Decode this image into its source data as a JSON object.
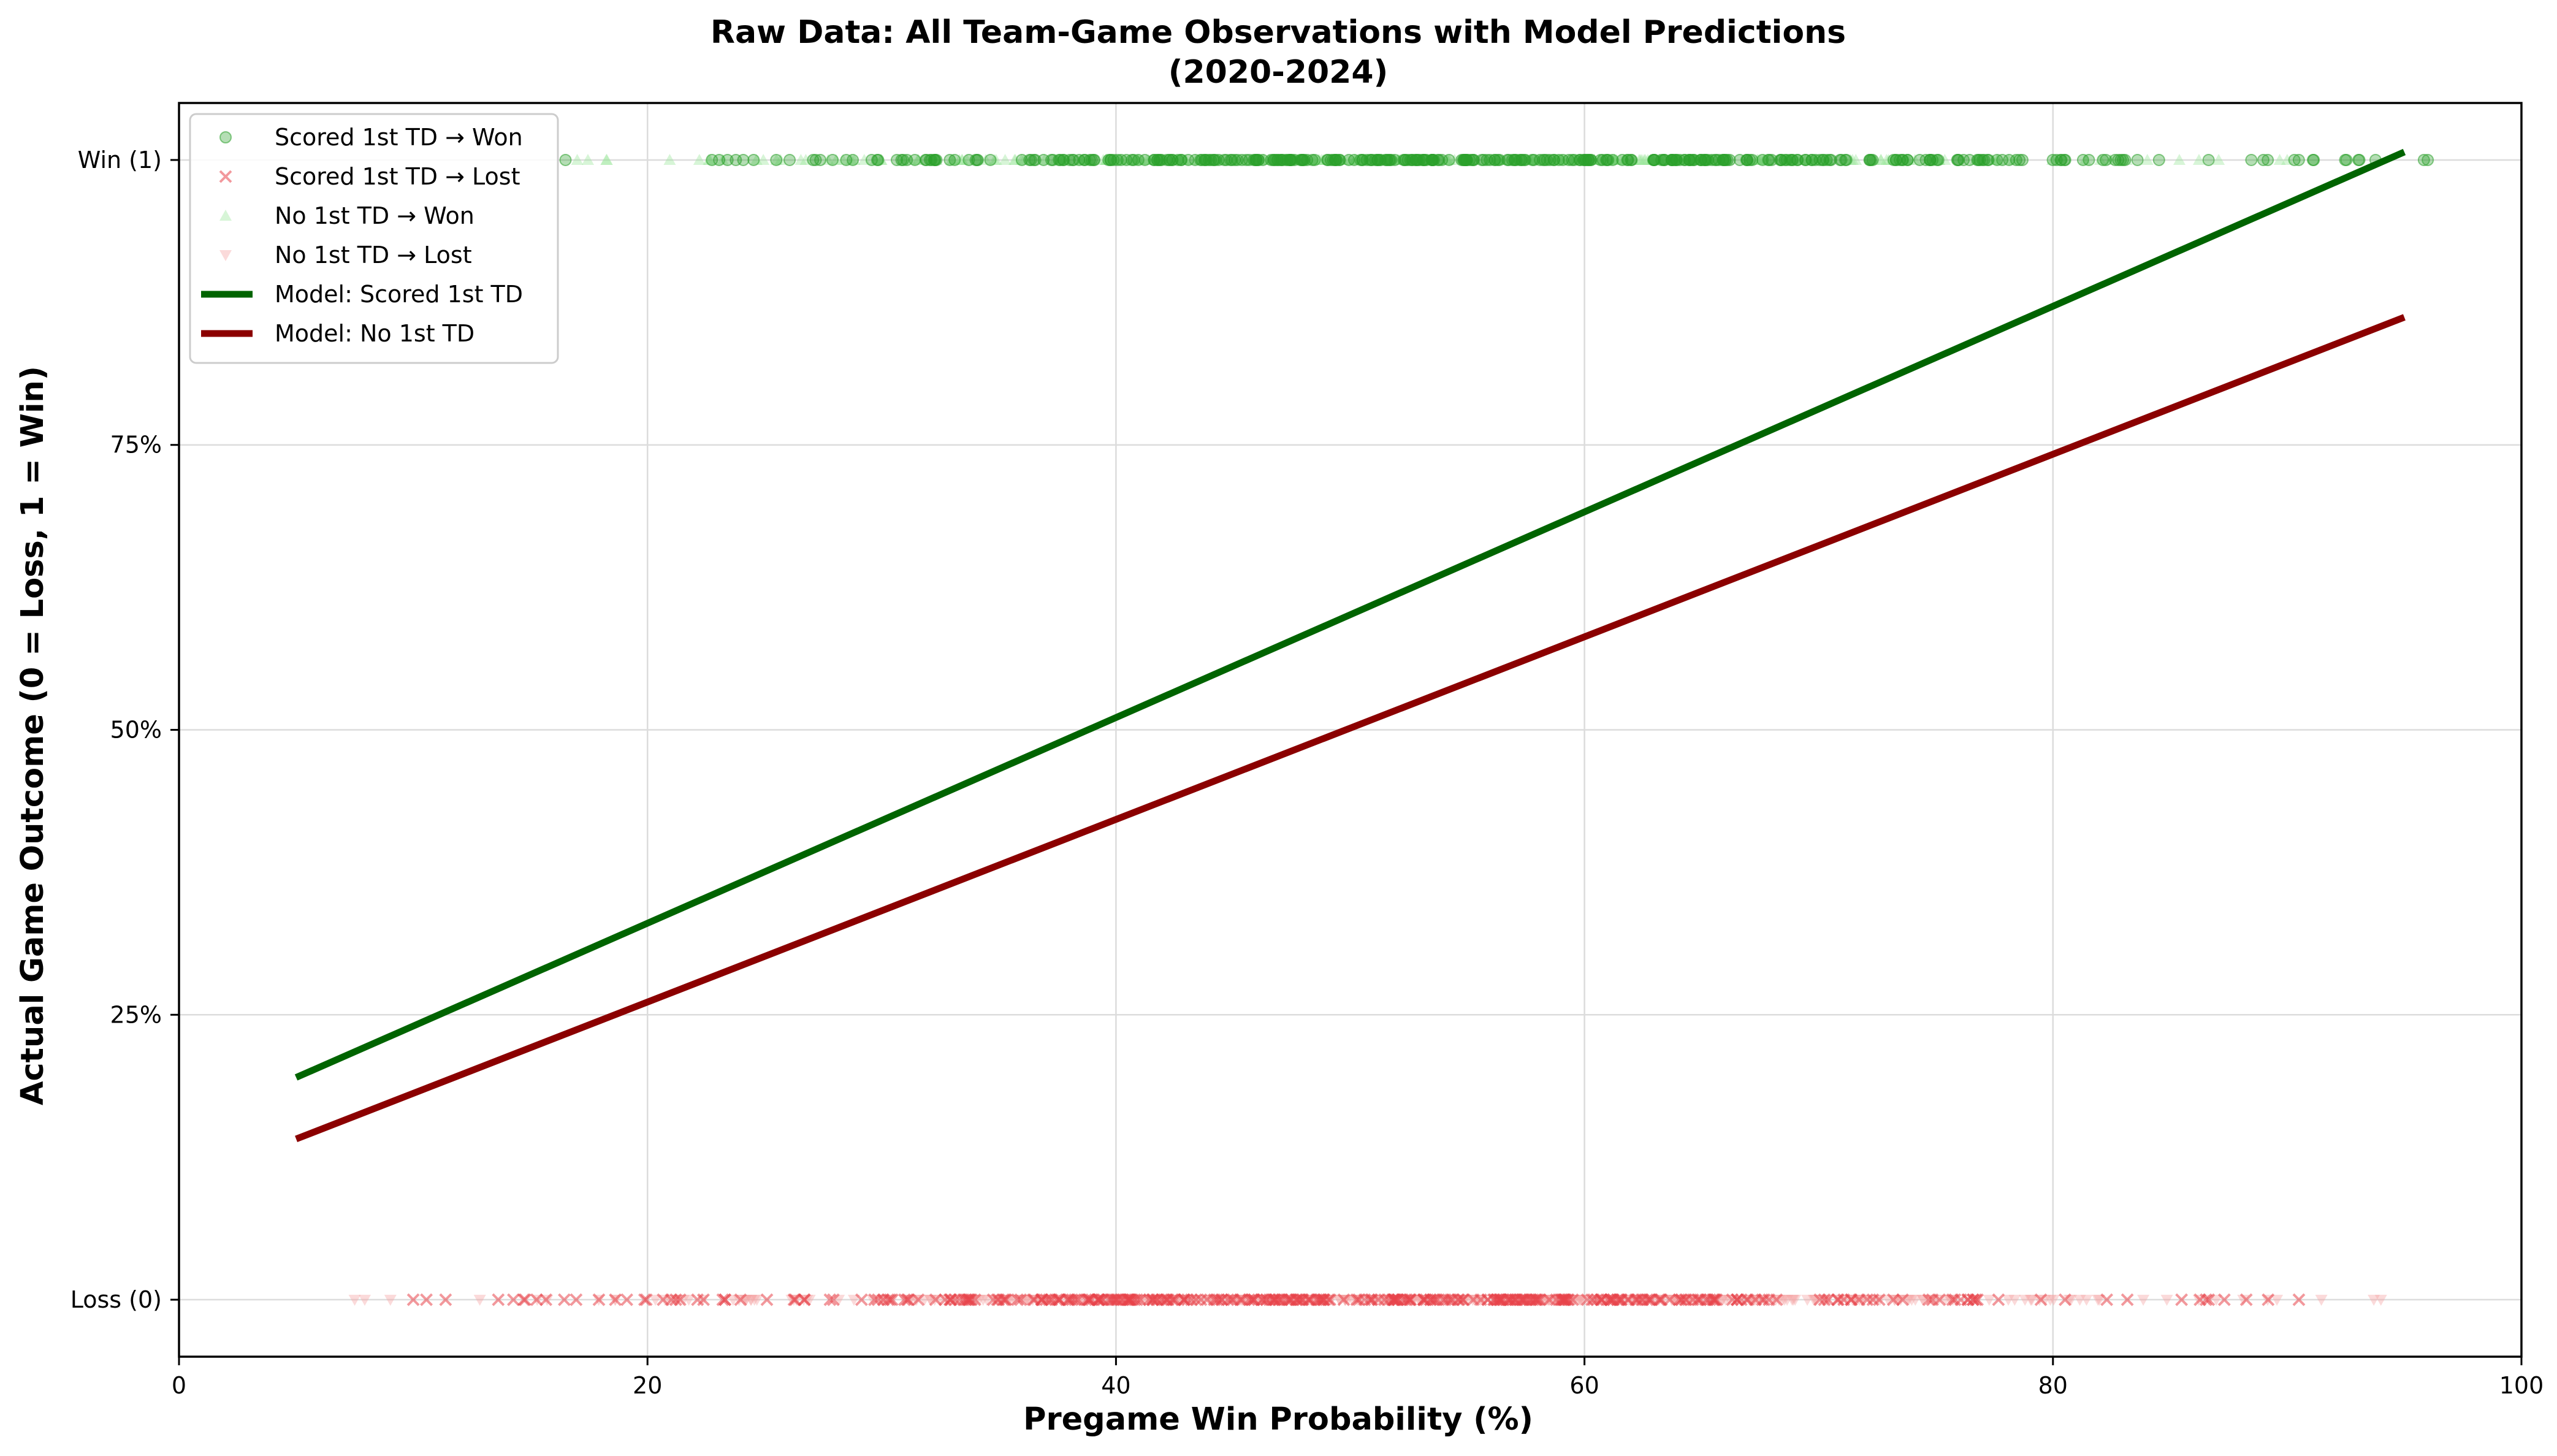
{
  "chart_data": {
    "type": "scatter",
    "title": "Raw Data: All Team-Game Observations with Model Predictions",
    "subtitle": "(2020-2024)",
    "xlabel": "Pregame Win Probability (%)",
    "ylabel": "Actual Game Outcome (0 = Loss, 1 = Win)",
    "xlim": [
      0,
      100
    ],
    "ylim": [
      -0.05,
      1.05
    ],
    "x_ticks": [
      0,
      20,
      40,
      60,
      80,
      100
    ],
    "x_tick_labels": [
      "0",
      "20",
      "40",
      "60",
      "80",
      "100"
    ],
    "y_ticks": [
      0,
      0.25,
      0.5,
      0.75,
      1
    ],
    "y_tick_labels": [
      "Loss (0)",
      "25%",
      "50%",
      "75%",
      "Win (1)"
    ],
    "grid": true,
    "legend_position": "top-left",
    "series": [
      {
        "name": "Scored 1st TD → Won",
        "kind": "scatter",
        "marker": "circle",
        "color": "#2ca02c",
        "y": 1,
        "x_range": [
          16.5,
          96
        ],
        "n": 420
      },
      {
        "name": "Scored 1st TD → Lost",
        "kind": "scatter",
        "marker": "x",
        "color": "#e8444a",
        "y": 0,
        "x_range": [
          10,
          90.5
        ],
        "n": 380
      },
      {
        "name": "No 1st TD → Won",
        "kind": "scatter",
        "marker": "triangle-up",
        "color": "#9be59b",
        "y": 1,
        "x_range": [
          17,
          90
        ],
        "n": 380
      },
      {
        "name": "No 1st TD → Lost",
        "kind": "scatter",
        "marker": "triangle-down",
        "color": "#f4a3a3",
        "y": 0,
        "x_range": [
          7.5,
          94
        ],
        "n": 420
      },
      {
        "name": "Model: Scored 1st TD",
        "kind": "line",
        "color": "#006400",
        "x": [
          5,
          95
        ],
        "y": [
          0.195,
          1.007
        ]
      },
      {
        "name": "Model: No 1st TD",
        "kind": "line",
        "color": "#8b0000",
        "x": [
          5,
          95
        ],
        "y": [
          0.141,
          0.862
        ]
      }
    ]
  }
}
